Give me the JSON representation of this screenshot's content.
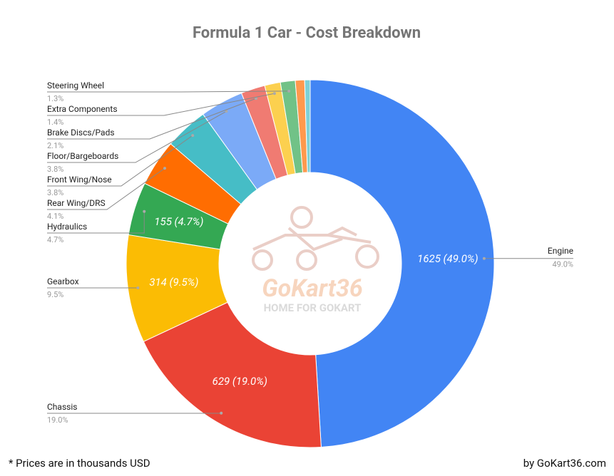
{
  "chart_data": {
    "type": "donut",
    "title": "Formula 1 Car - Cost Breakdown",
    "categories": [
      "Engine",
      "Chassis",
      "Gearbox",
      "Hydraulics",
      "Rear Wing/DRS",
      "Front Wing/Nose",
      "Floor/Bargeboards",
      "Brake Discs/Pads",
      "Extra Components",
      "Steering Wheel",
      null,
      null
    ],
    "values": [
      1625,
      629,
      314,
      155,
      136,
      126,
      126,
      70,
      46,
      43,
      27,
      16
    ],
    "value_labels": [
      "1625 (49.0%)",
      "629 (19.0%)",
      "314 (9.5%)",
      "155 (4.7%)",
      null,
      null,
      null,
      null,
      null,
      null,
      null,
      null
    ],
    "percent_labels": [
      "49.0%",
      "19.0%",
      "9.5%",
      "4.7%",
      "4.1%",
      "3.8%",
      "3.8%",
      "2.1%",
      "1.4%",
      "1.3%",
      null,
      null
    ],
    "colors": [
      "#4285f4",
      "#ea4335",
      "#fbbc04",
      "#34a853",
      "#ff6d01",
      "#46bdc6",
      "#7baaf7",
      "#f07b72",
      "#fcd04f",
      "#71c287",
      "#ff994d",
      "#7ed1d7"
    ],
    "watermark": {
      "name": "GoKart36",
      "tagline": "HOME FOR GOKART"
    },
    "footnote": "* Prices are in thousands USD",
    "credit": "by GoKart36.com"
  }
}
